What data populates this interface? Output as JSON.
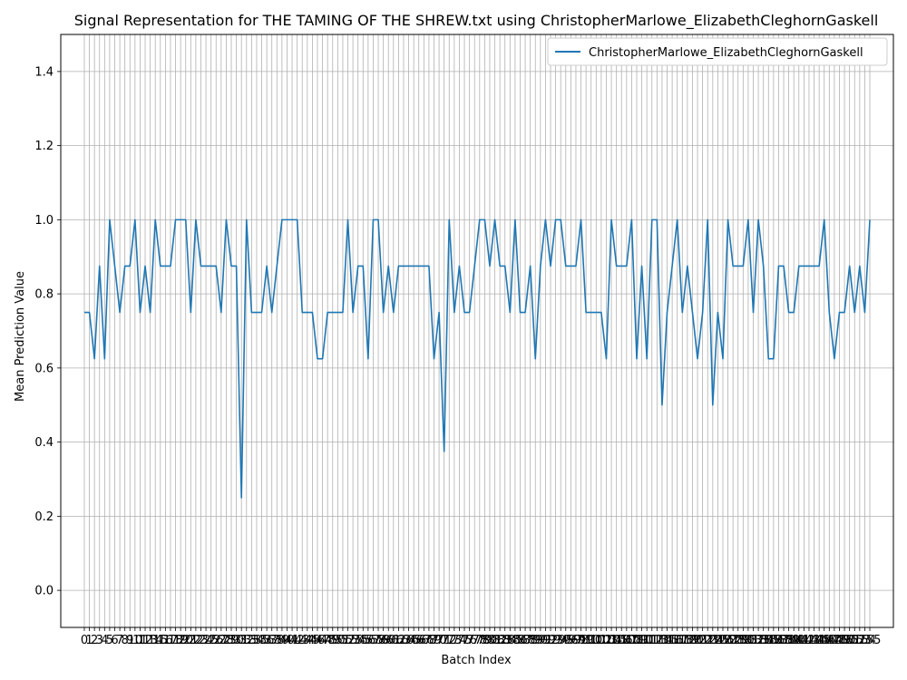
{
  "chart_data": {
    "type": "line",
    "title": "Signal Representation for THE TAMING OF THE SHREW.txt using ChristopherMarlowe_ElizabethCleghornGaskell",
    "xlabel": "Batch Index",
    "ylabel": "Mean Prediction Value",
    "xlim": [
      -4.65,
      159.65
    ],
    "ylim": [
      -0.1,
      1.5
    ],
    "yticks": [
      "0.0",
      "0.2",
      "0.4",
      "0.6",
      "0.8",
      "1.0",
      "1.2",
      "1.4"
    ],
    "grid": true,
    "legend_position": "top-right",
    "line_color": "#1f77b4",
    "series": [
      {
        "name": "ChristopherMarlowe_ElizabethCleghornGaskell",
        "values": [
          0.75,
          0.75,
          0.625,
          0.875,
          0.625,
          1.0,
          0.875,
          0.75,
          0.875,
          0.875,
          1.0,
          0.75,
          0.875,
          0.75,
          1.0,
          0.875,
          0.875,
          0.875,
          1.0,
          1.0,
          1.0,
          0.75,
          1.0,
          0.875,
          0.875,
          0.875,
          0.875,
          0.75,
          1.0,
          0.875,
          0.875,
          0.25,
          1.0,
          0.75,
          0.75,
          0.75,
          0.875,
          0.75,
          0.875,
          1.0,
          1.0,
          1.0,
          1.0,
          0.75,
          0.75,
          0.75,
          0.625,
          0.625,
          0.75,
          0.75,
          0.75,
          0.75,
          1.0,
          0.75,
          0.875,
          0.875,
          0.625,
          1.0,
          1.0,
          0.75,
          0.875,
          0.75,
          0.875,
          0.875,
          0.875,
          0.875,
          0.875,
          0.875,
          0.875,
          0.625,
          0.75,
          0.375,
          1.0,
          0.75,
          0.875,
          0.75,
          0.75,
          0.875,
          1.0,
          1.0,
          0.875,
          1.0,
          0.875,
          0.875,
          0.75,
          1.0,
          0.75,
          0.75,
          0.875,
          0.625,
          0.875,
          1.0,
          0.875,
          1.0,
          1.0,
          0.875,
          0.875,
          0.875,
          1.0,
          0.75,
          0.75,
          0.75,
          0.75,
          0.625,
          1.0,
          0.875,
          0.875,
          0.875,
          1.0,
          0.625,
          0.875,
          0.625,
          1.0,
          1.0,
          0.5,
          0.75,
          0.875,
          1.0,
          0.75,
          0.875,
          0.75,
          0.625,
          0.75,
          1.0,
          0.5,
          0.75,
          0.625,
          1.0,
          0.875,
          0.875,
          0.875,
          1.0,
          0.75,
          1.0,
          0.875,
          0.625,
          0.625,
          0.875,
          0.875,
          0.75,
          0.75,
          0.875,
          0.875,
          0.875,
          0.875,
          0.875,
          1.0,
          0.75,
          0.625,
          0.75,
          0.75,
          0.875,
          0.75,
          0.875,
          0.75,
          1.0
        ]
      }
    ]
  }
}
